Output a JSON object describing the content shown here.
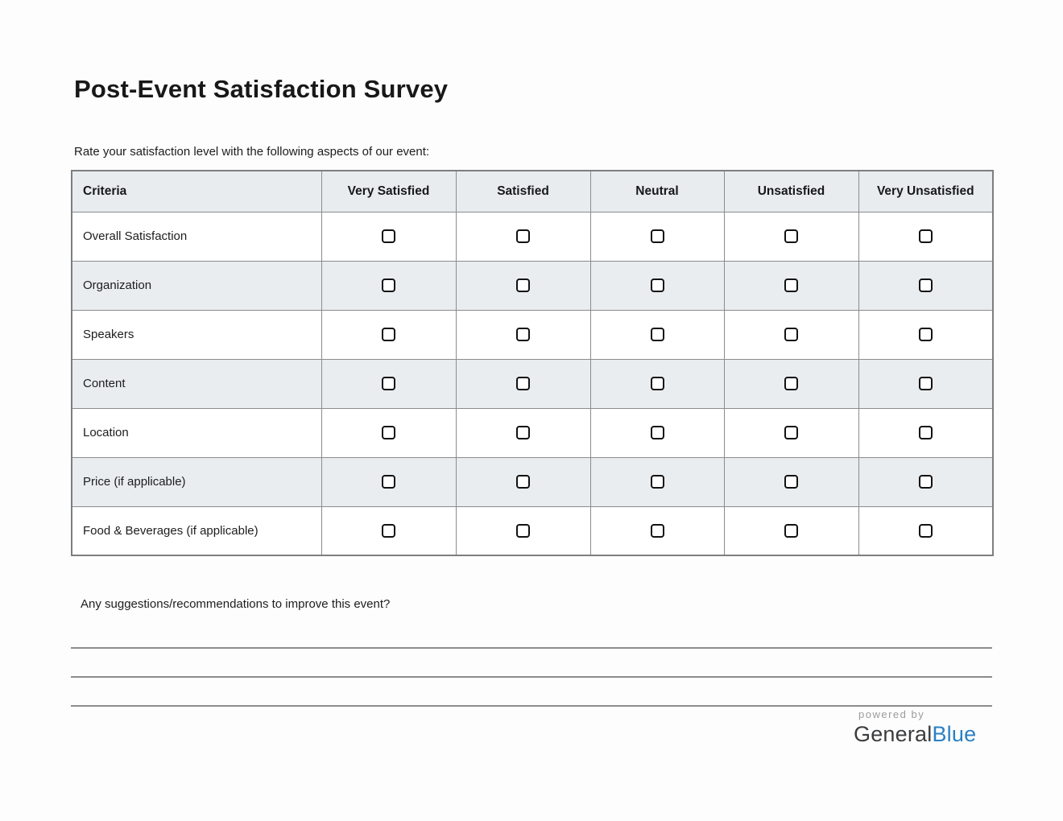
{
  "page": {
    "title": "Post-Event Satisfaction Survey",
    "instruction": "Rate your satisfaction level with the following aspects of our event:",
    "suggestions_label": "Any suggestions/recommendations to improve this event?"
  },
  "table": {
    "columns": [
      "Criteria",
      "Very Satisfied",
      "Satisfied",
      "Neutral",
      "Unsatisfied",
      "Very Unsatisfied"
    ],
    "rows": [
      {
        "label": "Overall Satisfaction",
        "checkboxes": [
          false,
          false,
          false,
          false,
          false
        ]
      },
      {
        "label": "Organization",
        "checkboxes": [
          false,
          false,
          false,
          false,
          false
        ]
      },
      {
        "label": "Speakers",
        "checkboxes": [
          false,
          false,
          false,
          false,
          false
        ]
      },
      {
        "label": "Content",
        "checkboxes": [
          false,
          false,
          false,
          false,
          false
        ]
      },
      {
        "label": "Location",
        "checkboxes": [
          false,
          false,
          false,
          false,
          false
        ]
      },
      {
        "label": "Price (if applicable)",
        "checkboxes": [
          false,
          false,
          false,
          false,
          false
        ]
      },
      {
        "label": "Food & Beverages (if applicable)",
        "checkboxes": [
          false,
          false,
          false,
          false,
          false
        ]
      }
    ]
  },
  "answer_lines": {
    "count": 3
  },
  "footer": {
    "powered_by": "powered by",
    "brand_general": "General",
    "brand_blue": "Blue",
    "brand_blue_color": "#2b80c4"
  },
  "colors": {
    "row_shaded_bg": "#e9edf0",
    "header_bg": "#e8ecef",
    "table_border": "#8a8c8e",
    "line_gray": "#8a8c8e"
  }
}
